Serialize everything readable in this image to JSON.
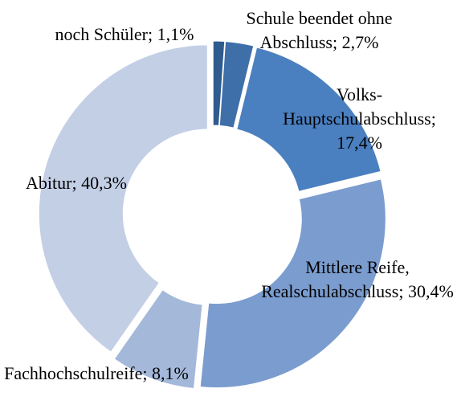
{
  "chart_data": {
    "type": "donut",
    "categories": [
      "noch Schüler",
      "Schule beendet ohne Abschluss",
      "Volks-Hauptschulabschluss",
      "Mittlere Reife, Realschulabschluss",
      "Fachhochschulreife",
      "Abitur"
    ],
    "values": [
      1.1,
      2.7,
      17.4,
      30.4,
      8.1,
      40.3
    ],
    "value_labels": [
      "1,1%",
      "2,7%",
      "17,4%",
      "30,4%",
      "8,1%",
      "40,3%"
    ],
    "colors": [
      "#2f5b8e",
      "#3f6fa9",
      "#4a7fc0",
      "#7b9ccf",
      "#a4b8da",
      "#c3cfe5"
    ]
  }
}
